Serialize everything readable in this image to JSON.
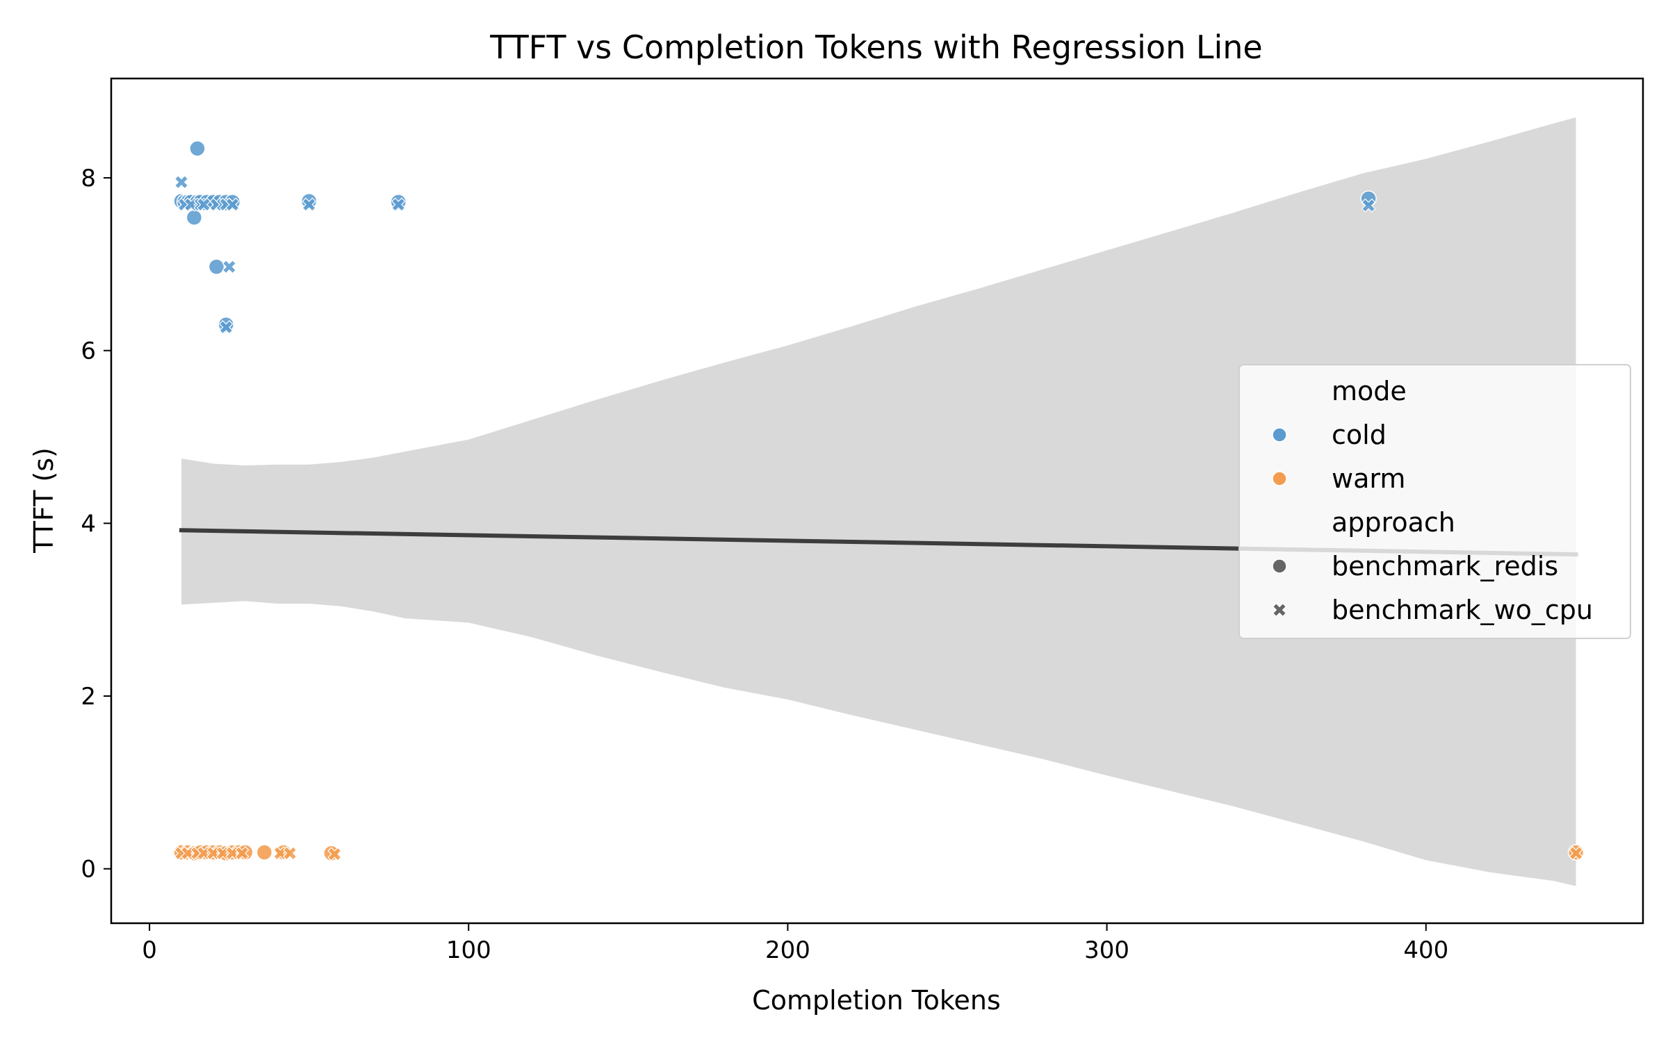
{
  "chart_data": {
    "type": "scatter",
    "title": "TTFT vs Completion Tokens with Regression Line",
    "xlabel": "Completion Tokens",
    "ylabel": "TTFT (s)",
    "xlim": [
      -12,
      468
    ],
    "ylim": [
      -0.63,
      9.15
    ],
    "xticks": [
      0,
      100,
      200,
      300,
      400
    ],
    "yticks": [
      0,
      2,
      4,
      6,
      8
    ],
    "grid": false,
    "colors": {
      "cold": "#5b9bcf",
      "warm": "#f39c4f",
      "regression": "#3d3d3d",
      "ci": "#d9d9d9",
      "legend_marker": "#666666"
    },
    "series": [
      {
        "name": "cold / benchmark_redis",
        "mode": "cold",
        "approach": "benchmark_redis",
        "marker": "circle",
        "x": [
          10,
          11,
          12,
          13,
          15,
          16,
          18,
          20,
          22,
          24,
          26,
          15,
          14,
          21,
          24,
          50,
          78,
          382
        ],
        "y": [
          7.73,
          7.72,
          7.72,
          7.72,
          7.72,
          7.72,
          7.72,
          7.72,
          7.72,
          7.72,
          7.72,
          8.34,
          7.54,
          6.97,
          6.3,
          7.73,
          7.72,
          7.76
        ]
      },
      {
        "name": "cold / benchmark_wo_cpu",
        "mode": "cold",
        "approach": "benchmark_wo_cpu",
        "marker": "x",
        "x": [
          10,
          11,
          13,
          16,
          17,
          21,
          23,
          24,
          26,
          25,
          24,
          50,
          78,
          382
        ],
        "y": [
          7.95,
          7.69,
          7.69,
          7.69,
          7.69,
          7.69,
          7.69,
          7.69,
          7.69,
          6.97,
          6.27,
          7.69,
          7.69,
          7.68
        ]
      },
      {
        "name": "warm / benchmark_redis",
        "mode": "warm",
        "approach": "benchmark_redis",
        "marker": "circle",
        "x": [
          10,
          12,
          14,
          16,
          18,
          20,
          22,
          24,
          26,
          28,
          30,
          36,
          42,
          57,
          447
        ],
        "y": [
          0.19,
          0.19,
          0.18,
          0.19,
          0.19,
          0.19,
          0.19,
          0.18,
          0.19,
          0.19,
          0.19,
          0.19,
          0.19,
          0.18,
          0.19
        ]
      },
      {
        "name": "warm / benchmark_wo_cpu",
        "mode": "warm",
        "approach": "benchmark_wo_cpu",
        "marker": "x",
        "x": [
          10,
          12,
          15,
          17,
          20,
          23,
          26,
          29,
          41,
          44,
          58,
          447
        ],
        "y": [
          0.18,
          0.18,
          0.18,
          0.18,
          0.18,
          0.18,
          0.18,
          0.18,
          0.18,
          0.18,
          0.17,
          0.18
        ]
      }
    ],
    "regression": {
      "x": [
        10,
        447
      ],
      "y": [
        3.92,
        3.64
      ]
    },
    "confidence_band": {
      "x": [
        10,
        20,
        30,
        40,
        50,
        60,
        70,
        80,
        100,
        120,
        140,
        160,
        180,
        200,
        220,
        240,
        260,
        280,
        300,
        320,
        340,
        360,
        380,
        400,
        420,
        440,
        447
      ],
      "upper": [
        4.75,
        4.69,
        4.67,
        4.68,
        4.68,
        4.71,
        4.76,
        4.83,
        4.97,
        5.2,
        5.43,
        5.65,
        5.86,
        6.06,
        6.28,
        6.51,
        6.72,
        6.94,
        7.16,
        7.38,
        7.6,
        7.83,
        8.05,
        8.22,
        8.42,
        8.63,
        8.7
      ],
      "lower": [
        3.06,
        3.08,
        3.1,
        3.07,
        3.07,
        3.04,
        2.98,
        2.9,
        2.85,
        2.68,
        2.47,
        2.28,
        2.1,
        1.96,
        1.78,
        1.61,
        1.44,
        1.27,
        1.08,
        0.9,
        0.72,
        0.52,
        0.32,
        0.1,
        -0.04,
        -0.14,
        -0.2
      ]
    },
    "legend": {
      "position": "center-right",
      "entries": [
        {
          "label": "mode",
          "marker": "none"
        },
        {
          "label": "cold",
          "marker": "circle",
          "color": "#5b9bcf"
        },
        {
          "label": "warm",
          "marker": "circle",
          "color": "#f39c4f"
        },
        {
          "label": "approach",
          "marker": "none"
        },
        {
          "label": "benchmark_redis",
          "marker": "circle",
          "color": "#666666"
        },
        {
          "label": "benchmark_wo_cpu",
          "marker": "x",
          "color": "#666666"
        }
      ]
    }
  }
}
